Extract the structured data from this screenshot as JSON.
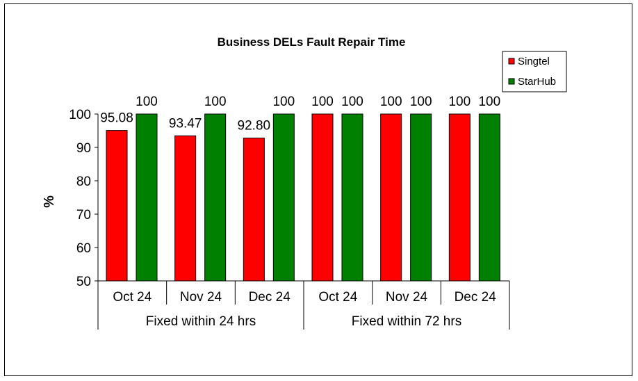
{
  "chart_data": {
    "type": "bar",
    "title": "Business DELs Fault Repair Time",
    "ylabel": "%",
    "ylim": [
      50,
      100
    ],
    "yticks": [
      50,
      60,
      70,
      80,
      90,
      100
    ],
    "categories": [
      "Oct 24",
      "Nov 24",
      "Dec 24",
      "Oct 24",
      "Nov 24",
      "Dec 24"
    ],
    "groups": [
      {
        "label": "Fixed within 24 hrs",
        "span": [
          0,
          2
        ]
      },
      {
        "label": "Fixed within 72 hrs",
        "span": [
          3,
          5
        ]
      }
    ],
    "series": [
      {
        "name": "Singtel",
        "color": "#ff0000",
        "values": [
          95.08,
          93.47,
          92.8,
          100,
          100,
          100
        ],
        "labels": [
          "95.08",
          "93.47",
          "92.80",
          "100",
          "100",
          "100"
        ]
      },
      {
        "name": "StarHub",
        "color": "#008000",
        "values": [
          100,
          100,
          100,
          100,
          100,
          100
        ],
        "labels": [
          "100",
          "100",
          "100",
          "100",
          "100",
          "100"
        ]
      }
    ],
    "legend_position": "top-right",
    "grid": false
  }
}
